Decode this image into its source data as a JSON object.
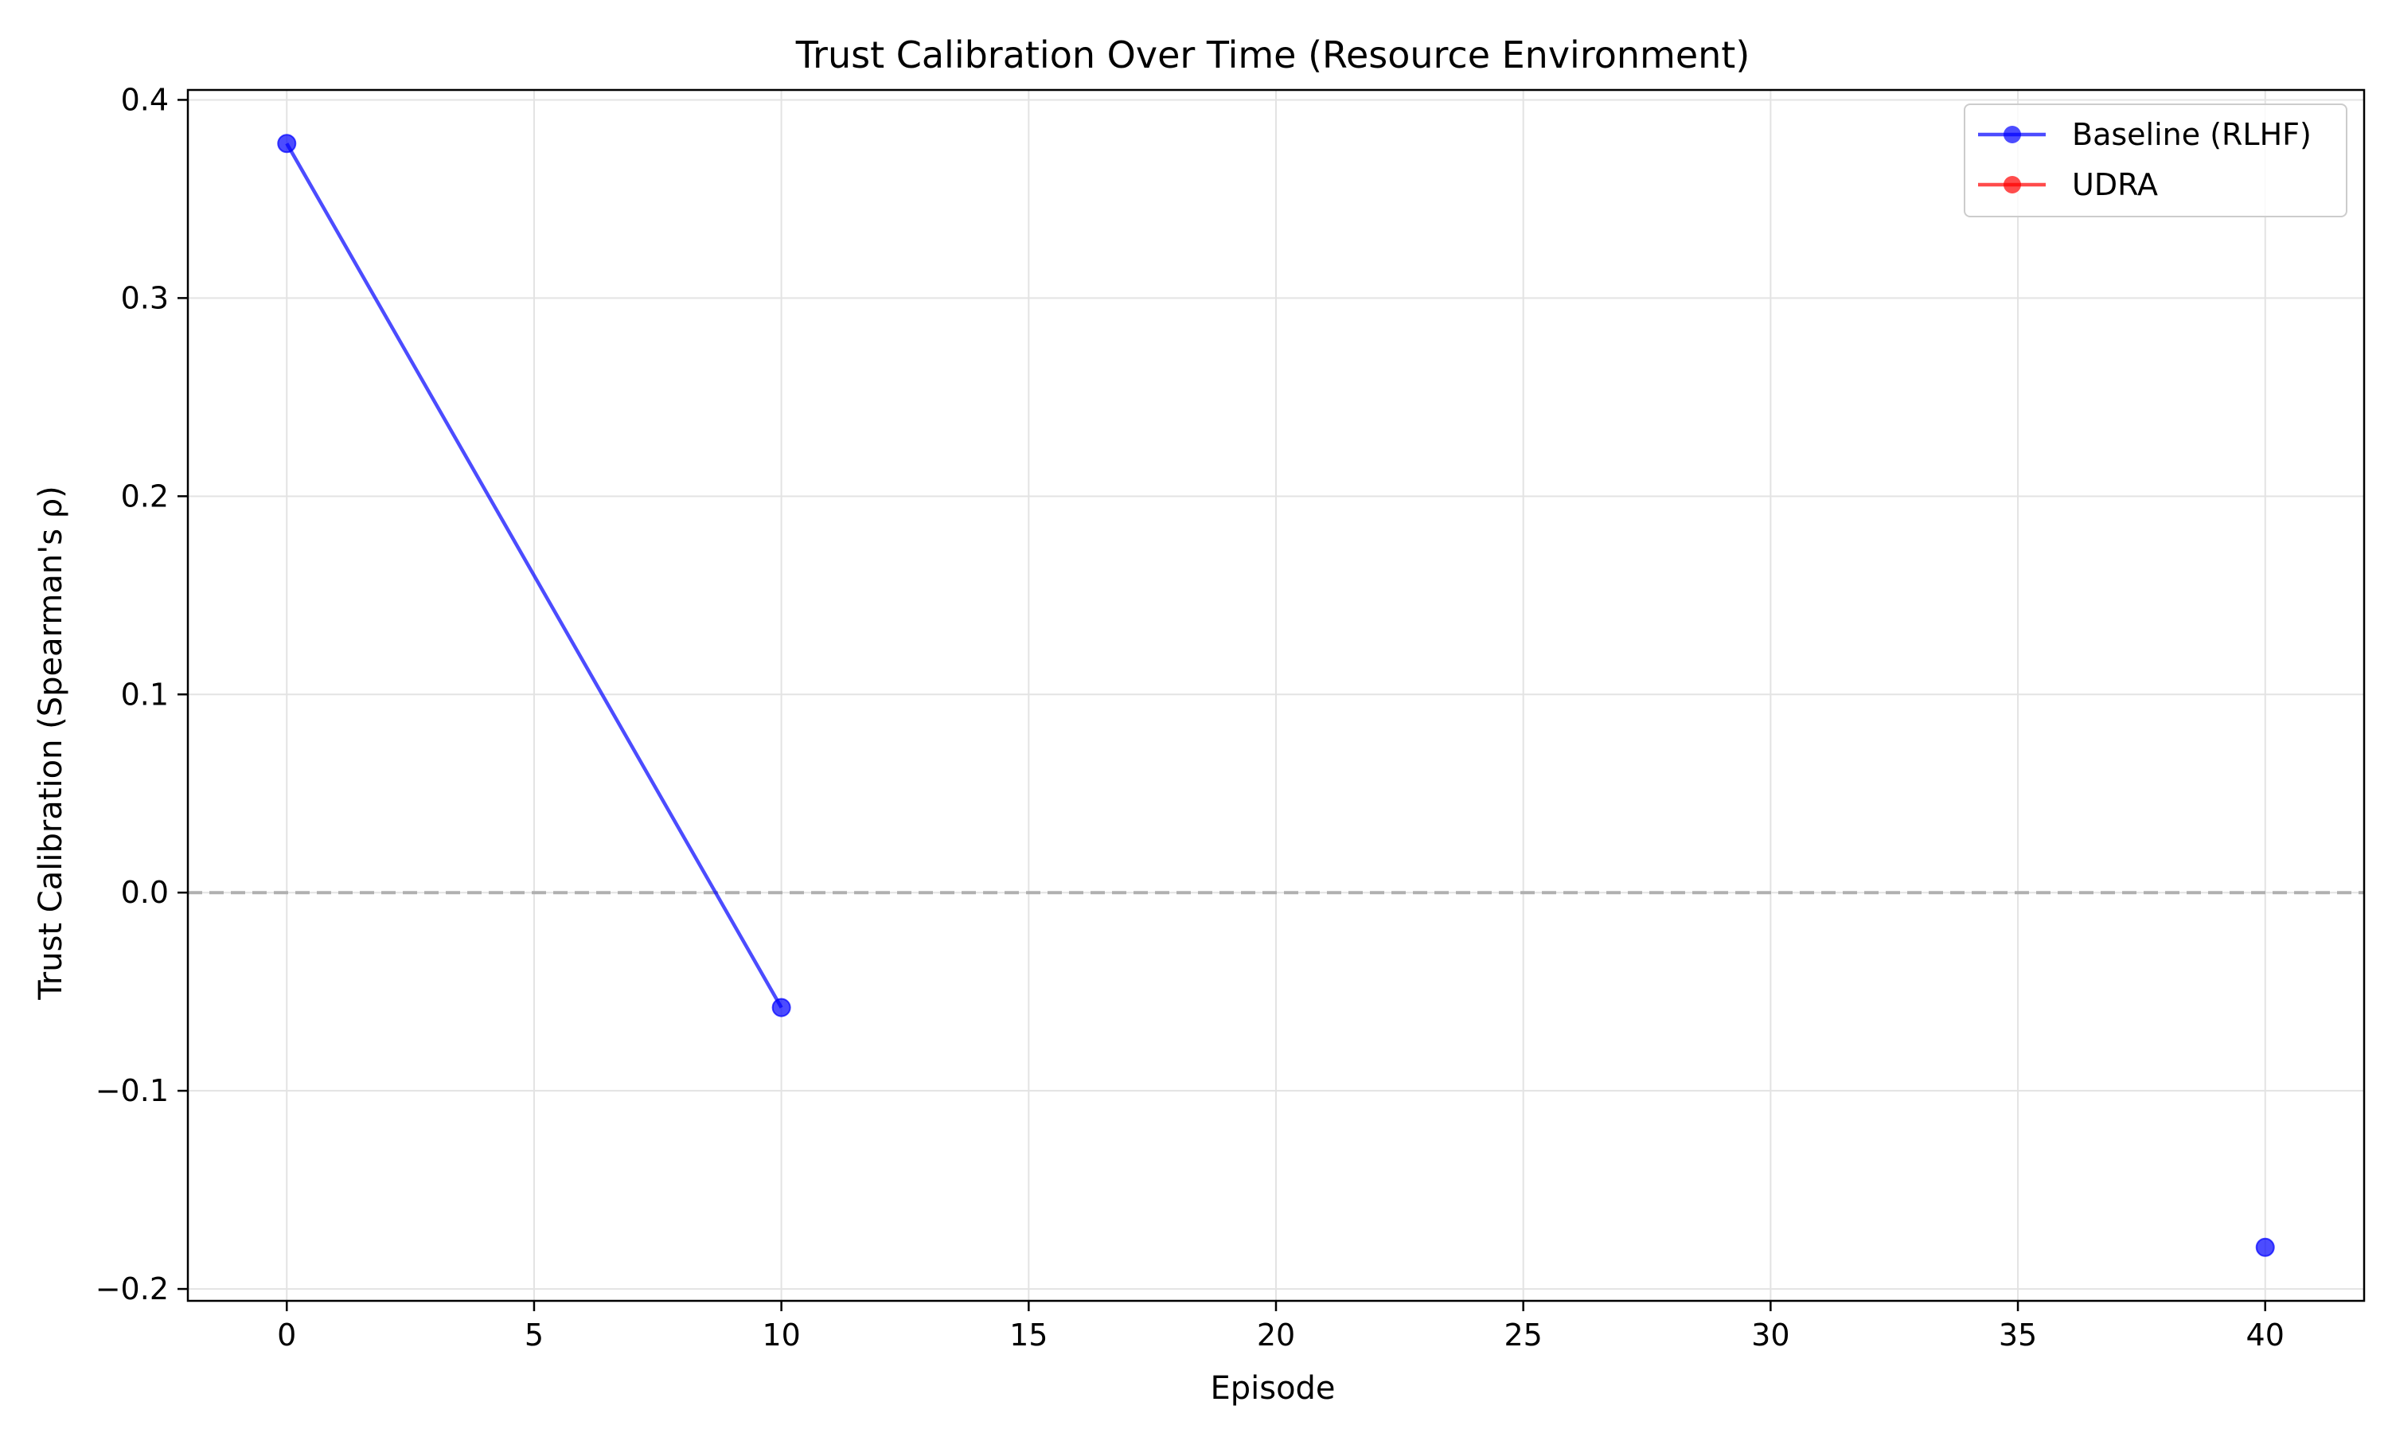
{
  "chart_data": {
    "type": "line",
    "title": "Trust Calibration Over Time (Resource Environment)",
    "xlabel": "Episode",
    "ylabel": "Trust Calibration (Spearman's ρ)",
    "xlim": [
      -2,
      42
    ],
    "ylim": [
      -0.206,
      0.405
    ],
    "xticks": [
      0,
      5,
      10,
      15,
      20,
      25,
      30,
      35,
      40
    ],
    "xtick_labels": [
      "0",
      "5",
      "10",
      "15",
      "20",
      "25",
      "30",
      "35",
      "40"
    ],
    "yticks": [
      0.4,
      0.3,
      0.2,
      0.1,
      0.0,
      -0.1,
      -0.2
    ],
    "ytick_labels": [
      "0.4",
      "0.3",
      "0.2",
      "0.1",
      "0.0",
      "−0.1",
      "−0.2"
    ],
    "grid": true,
    "legend_position": "top-right",
    "reference_line": {
      "y": 0.0,
      "style": "dashed",
      "color": "#b0b0b0"
    },
    "series": [
      {
        "name": "Baseline (RLHF)",
        "color": "#0000ff",
        "marker": "circle",
        "points": [
          [
            0,
            0.378
          ],
          [
            10,
            -0.058
          ],
          [
            40,
            -0.179
          ]
        ],
        "connected_segments": [
          [
            0,
            1
          ]
        ]
      },
      {
        "name": "UDRA",
        "color": "#ff0000",
        "marker": "circle",
        "points": [],
        "connected_segments": []
      }
    ]
  }
}
